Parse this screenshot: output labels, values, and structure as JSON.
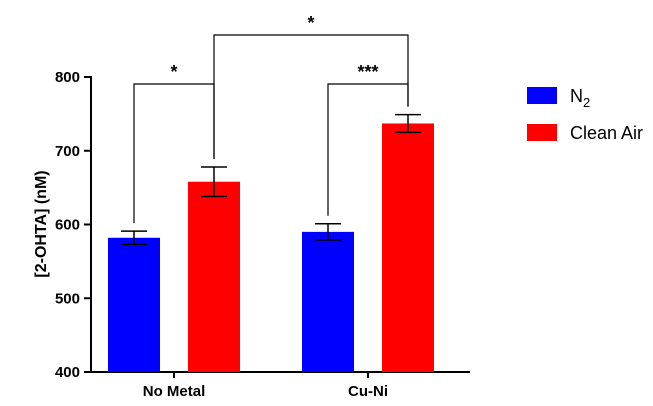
{
  "chart_data": {
    "type": "bar",
    "ylabel": "[2-OHTA] (nM)",
    "ylim": [
      400,
      800
    ],
    "yticks": [
      400,
      500,
      600,
      700,
      800
    ],
    "categories": [
      "No Metal",
      "Cu-Ni"
    ],
    "series": [
      {
        "name": "N2",
        "legend_main": "N",
        "legend_sub": "2",
        "color": "#0000ff",
        "values": [
          582,
          590
        ],
        "errors": [
          9,
          11
        ]
      },
      {
        "name": "Clean Air",
        "legend_main": "Clean Air",
        "legend_sub": "",
        "color": "#ff0000",
        "values": [
          658,
          737
        ],
        "errors": [
          20,
          12
        ]
      }
    ],
    "significance": [
      {
        "label": "*",
        "from": "No Metal|N2",
        "to": "No Metal|Clean Air"
      },
      {
        "label": "***",
        "from": "Cu-Ni|N2",
        "to": "Cu-Ni|Clean Air"
      },
      {
        "label": "*",
        "from": "No Metal|Clean Air",
        "to": "Cu-Ni|Clean Air"
      }
    ],
    "legend_position": "right",
    "grid": false
  }
}
